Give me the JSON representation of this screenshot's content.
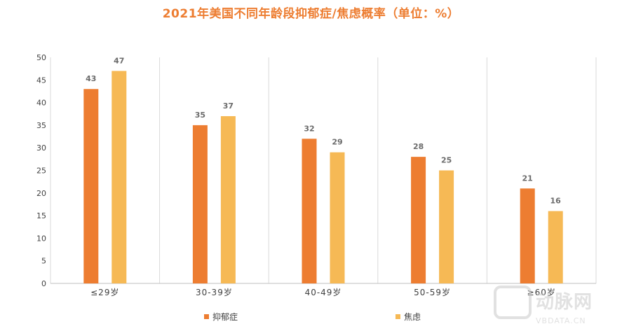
{
  "chart_data": {
    "type": "bar",
    "title": "2021年美国不同年龄段抑郁症/焦虑概率（单位：%）",
    "categories": [
      "≤29岁",
      "30-39岁",
      "40-49岁",
      "50-59岁",
      "≥60岁"
    ],
    "series": [
      {
        "name": "抑郁症",
        "values": [
          43,
          35,
          32,
          28,
          21
        ],
        "color": "#ed7d31"
      },
      {
        "name": "焦虑",
        "values": [
          47,
          37,
          29,
          25,
          16
        ],
        "color": "#f6b955"
      }
    ],
    "ylim": [
      0,
      50
    ],
    "yticks": [
      0,
      5,
      10,
      15,
      20,
      25,
      30,
      35,
      40,
      45,
      50
    ],
    "xlabel": "",
    "ylabel": "",
    "grid": "vertical category separators",
    "legend": "bottom-center"
  },
  "watermark": {
    "logo_text": "动脉网",
    "url_text": "VBDATA.CN"
  }
}
